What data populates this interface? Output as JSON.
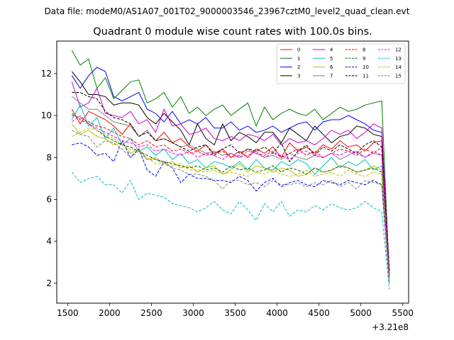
{
  "suptitle": "Data file: modeM0/AS1A07_001T02_9000003546_23967cztM0_level2_quad_clean.evt",
  "chart_data": {
    "type": "line",
    "title": "Quadrant 0 module wise count rates with 100.0s bins.",
    "xlabel": "",
    "ylabel": "",
    "x_offset_label": "+3.21e8",
    "xlim": [
      1370,
      5570
    ],
    "ylim": [
      1.05,
      13.55
    ],
    "xticks": [
      1500,
      2000,
      2500,
      3000,
      3500,
      4000,
      4500,
      5000,
      5500
    ],
    "yticks": [
      2,
      4,
      6,
      8,
      10,
      12
    ],
    "grid": false,
    "legend_position": "top-right",
    "x": [
      1550,
      1650,
      1750,
      1850,
      1950,
      2050,
      2150,
      2250,
      2350,
      2450,
      2550,
      2650,
      2750,
      2850,
      2950,
      3050,
      3150,
      3250,
      3350,
      3450,
      3550,
      3650,
      3750,
      3850,
      3950,
      4050,
      4150,
      4250,
      4350,
      4450,
      4550,
      4650,
      4750,
      4850,
      4950,
      5050,
      5150,
      5250,
      5340
    ],
    "series": [
      {
        "name": "0",
        "color": "#ff0000",
        "dash": "solid",
        "values": [
          10.3,
          9.6,
          10.2,
          10.0,
          9.8,
          9.5,
          9.1,
          9.6,
          9.0,
          9.3,
          8.8,
          9.2,
          8.7,
          8.9,
          8.5,
          8.3,
          8.6,
          8.2,
          8.4,
          8.0,
          8.3,
          8.0,
          8.4,
          8.2,
          8.5,
          8.0,
          8.7,
          8.3,
          8.5,
          8.2,
          8.6,
          8.4,
          8.8,
          8.5,
          8.6,
          8.3,
          8.7,
          8.8,
          2.5
        ]
      },
      {
        "name": "1",
        "color": "#008000",
        "dash": "solid",
        "values": [
          13.1,
          12.4,
          12.7,
          11.3,
          11.8,
          10.8,
          11.2,
          11.6,
          11.7,
          10.6,
          10.8,
          11.1,
          10.4,
          10.9,
          10.1,
          10.4,
          10.0,
          10.3,
          10.5,
          10.0,
          10.3,
          10.6,
          9.5,
          10.4,
          9.8,
          10.1,
          10.3,
          10.1,
          10.0,
          10.3,
          9.8,
          10.1,
          10.4,
          10.2,
          10.3,
          10.5,
          10.6,
          10.7,
          2.3
        ]
      },
      {
        "name": "2",
        "color": "#0000ff",
        "dash": "solid",
        "values": [
          11.9,
          11.3,
          11.9,
          12.3,
          12.1,
          10.9,
          10.7,
          10.9,
          11.1,
          10.3,
          10.1,
          9.7,
          10.2,
          9.6,
          9.8,
          9.6,
          9.9,
          9.4,
          9.4,
          9.7,
          9.3,
          9.5,
          9.2,
          9.3,
          9.5,
          9.2,
          9.4,
          9.6,
          9.7,
          9.3,
          9.7,
          9.8,
          9.8,
          10.0,
          9.8,
          9.6,
          9.3,
          9.2,
          2.4
        ]
      },
      {
        "name": "3",
        "color": "#000000",
        "dash": "solid",
        "values": [
          12.1,
          11.6,
          11.0,
          11.0,
          10.9,
          10.5,
          10.6,
          10.6,
          10.5,
          9.9,
          9.6,
          10.1,
          9.7,
          9.3,
          8.6,
          9.6,
          8.9,
          8.6,
          9.6,
          8.8,
          9.2,
          9.0,
          8.7,
          9.2,
          9.2,
          8.7,
          9.4,
          9.1,
          8.8,
          9.5,
          9.1,
          8.7,
          9.0,
          9.1,
          9.5,
          9.4,
          9.1,
          9.0,
          2.6
        ]
      },
      {
        "name": "4",
        "color": "#cc00cc",
        "dash": "solid",
        "values": [
          11.6,
          10.4,
          10.6,
          11.3,
          10.1,
          10.0,
          9.9,
          10.2,
          9.6,
          9.8,
          9.2,
          10.3,
          9.5,
          9.6,
          9.1,
          9.2,
          9.4,
          8.9,
          8.8,
          9.0,
          8.8,
          9.1,
          9.0,
          8.8,
          9.1,
          8.6,
          8.9,
          8.7,
          8.8,
          8.6,
          8.9,
          9.3,
          9.1,
          9.3,
          8.9,
          9.2,
          9.6,
          9.4,
          2.4
        ]
      },
      {
        "name": "5",
        "color": "#00bfbf",
        "dash": "solid",
        "values": [
          9.8,
          10.5,
          9.5,
          9.9,
          8.9,
          9.4,
          8.6,
          8.9,
          8.3,
          8.5,
          8.1,
          8.4,
          7.9,
          8.2,
          7.7,
          7.9,
          7.5,
          7.8,
          7.7,
          7.5,
          7.8,
          7.4,
          7.9,
          7.5,
          7.4,
          7.8,
          7.6,
          7.9,
          7.7,
          7.2,
          7.6,
          8.0,
          7.5,
          7.8,
          7.6,
          7.9,
          7.4,
          7.6,
          2.0
        ]
      },
      {
        "name": "6",
        "color": "#bfbf00",
        "dash": "solid",
        "values": [
          9.6,
          9.1,
          9.3,
          9.0,
          8.9,
          8.6,
          8.7,
          8.2,
          8.4,
          7.9,
          8.0,
          7.7,
          7.8,
          7.5,
          7.6,
          7.3,
          7.5,
          7.6,
          7.2,
          7.4,
          7.7,
          7.3,
          7.6,
          7.5,
          7.3,
          7.5,
          7.4,
          7.1,
          7.2,
          7.5,
          7.3,
          7.4,
          7.6,
          7.5,
          7.3,
          7.4,
          7.6,
          7.4,
          2.1
        ]
      },
      {
        "name": "7",
        "color": "#808080",
        "dash": "solid",
        "values": [
          10.9,
          10.6,
          10.3,
          10.3,
          10.0,
          9.7,
          9.6,
          9.5,
          9.0,
          9.3,
          8.8,
          8.9,
          8.7,
          8.5,
          8.6,
          8.4,
          8.2,
          8.3,
          8.1,
          8.2,
          8.0,
          8.3,
          8.2,
          8.0,
          8.1,
          7.9,
          8.2,
          8.0,
          7.9,
          8.1,
          8.0,
          8.2,
          7.9,
          8.1,
          8.3,
          8.0,
          8.2,
          8.1,
          2.3
        ]
      },
      {
        "name": "8",
        "color": "#ff0000",
        "dash": "dashed",
        "values": [
          10.0,
          9.9,
          9.7,
          9.5,
          9.4,
          9.2,
          9.0,
          8.9,
          8.6,
          8.8,
          8.5,
          8.6,
          8.3,
          8.4,
          8.2,
          8.3,
          8.1,
          8.2,
          8.3,
          8.0,
          8.1,
          8.4,
          8.2,
          8.1,
          8.3,
          8.0,
          8.2,
          8.4,
          8.1,
          8.3,
          8.0,
          8.2,
          8.4,
          8.3,
          8.1,
          8.4,
          8.2,
          8.5,
          2.4
        ]
      },
      {
        "name": "9",
        "color": "#006400",
        "dash": "dashed",
        "values": [
          10.1,
          9.8,
          9.6,
          9.3,
          9.0,
          8.8,
          8.6,
          8.5,
          8.3,
          8.1,
          7.9,
          7.8,
          7.7,
          7.6,
          7.5,
          7.6,
          7.4,
          7.5,
          7.3,
          7.6,
          7.4,
          7.5,
          7.3,
          7.4,
          7.6,
          7.3,
          7.5,
          7.4,
          7.2,
          7.5,
          7.3,
          7.4,
          7.6,
          7.5,
          7.3,
          7.4,
          7.5,
          7.3,
          2.2
        ]
      },
      {
        "name": "10",
        "color": "#0000ff",
        "dash": "dashed",
        "values": [
          8.6,
          8.7,
          8.5,
          8.1,
          8.2,
          7.8,
          8.8,
          8.0,
          8.4,
          7.4,
          7.1,
          7.8,
          7.5,
          6.8,
          7.2,
          7.0,
          7.0,
          6.9,
          6.9,
          6.8,
          7.1,
          6.9,
          6.4,
          6.8,
          7.0,
          6.6,
          6.8,
          6.9,
          6.7,
          6.6,
          6.9,
          6.8,
          6.7,
          6.9,
          6.8,
          6.7,
          6.9,
          6.7,
          2.0
        ]
      },
      {
        "name": "11",
        "color": "#000000",
        "dash": "dashed",
        "values": [
          11.1,
          11.1,
          10.9,
          10.8,
          10.2,
          9.9,
          9.8,
          9.6,
          9.0,
          9.2,
          8.8,
          8.9,
          8.7,
          8.5,
          8.3,
          8.5,
          8.6,
          8.1,
          8.4,
          8.6,
          8.2,
          8.4,
          8.3,
          8.5,
          8.2,
          8.7,
          7.8,
          8.3,
          8.6,
          8.1,
          8.5,
          8.3,
          8.6,
          8.4,
          8.2,
          8.6,
          8.8,
          8.5,
          2.6
        ]
      },
      {
        "name": "12",
        "color": "#ff00ff",
        "dash": "dashed",
        "values": [
          9.7,
          10.0,
          9.6,
          9.4,
          9.2,
          9.0,
          8.8,
          8.7,
          8.5,
          8.6,
          8.3,
          8.4,
          8.2,
          8.1,
          8.3,
          8.0,
          8.2,
          8.1,
          7.9,
          8.2,
          8.0,
          8.1,
          8.3,
          8.0,
          8.2,
          8.1,
          7.9,
          8.2,
          8.3,
          8.1,
          8.0,
          8.2,
          8.1,
          8.3,
          8.2,
          8.0,
          8.3,
          8.1,
          2.3
        ]
      },
      {
        "name": "13",
        "color": "#00bfbf",
        "dash": "dashed",
        "values": [
          7.3,
          6.8,
          7.0,
          7.1,
          6.7,
          6.7,
          6.3,
          6.9,
          6.0,
          6.3,
          6.2,
          6.1,
          5.8,
          5.7,
          5.6,
          5.4,
          5.6,
          5.9,
          5.5,
          5.3,
          5.9,
          5.5,
          5.0,
          5.8,
          5.4,
          5.9,
          5.2,
          5.5,
          5.4,
          5.7,
          5.5,
          5.8,
          5.6,
          5.5,
          5.6,
          5.9,
          5.6,
          5.4,
          1.7
        ]
      },
      {
        "name": "14",
        "color": "#bfbf00",
        "dash": "dashed",
        "values": [
          9.0,
          9.2,
          9.4,
          9.3,
          9.1,
          8.9,
          8.6,
          8.4,
          8.3,
          8.0,
          7.7,
          7.7,
          7.6,
          7.7,
          7.4,
          7.4,
          7.3,
          7.4,
          7.2,
          7.3,
          7.2,
          7.1,
          7.3,
          7.2,
          7.4,
          7.2,
          7.1,
          7.2,
          7.4,
          7.1,
          7.2,
          7.3,
          7.1,
          7.4,
          7.2,
          7.1,
          7.3,
          7.2,
          2.1
        ]
      },
      {
        "name": "15",
        "color": "#808080",
        "dash": "dashed",
        "values": [
          9.3,
          9.1,
          9.0,
          8.5,
          8.8,
          8.7,
          8.4,
          8.0,
          8.3,
          7.9,
          7.9,
          7.7,
          7.5,
          7.4,
          7.2,
          7.2,
          7.1,
          6.9,
          6.5,
          6.9,
          6.9,
          6.7,
          6.8,
          6.6,
          6.9,
          6.7,
          6.7,
          6.8,
          6.6,
          6.8,
          6.7,
          6.9,
          6.6,
          6.8,
          6.5,
          6.9,
          6.8,
          6.7,
          2.0
        ]
      }
    ]
  }
}
